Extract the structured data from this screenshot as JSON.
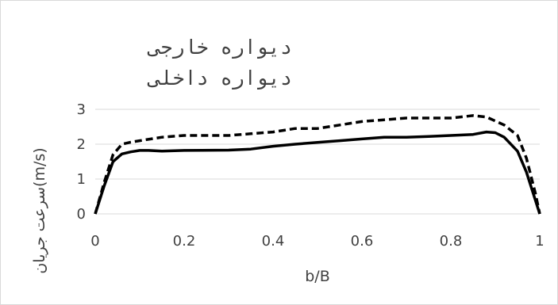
{
  "chart_data": {
    "type": "line",
    "title": "",
    "xlabel": "b/B",
    "ylabel": "سرعت جریان(m/s)",
    "xlim": [
      0,
      1
    ],
    "ylim": [
      0,
      3
    ],
    "x_ticks": [
      "0",
      "0.2",
      "0.4",
      "0.6",
      "0.8",
      "1"
    ],
    "y_ticks": [
      "0",
      "1",
      "2",
      "3"
    ],
    "grid": "horizontal",
    "legend_position": "top-left",
    "series": [
      {
        "name": "دیواره خارجی",
        "style": "dashed",
        "color": "#000000",
        "x": [
          0,
          0.02,
          0.04,
          0.06,
          0.08,
          0.1,
          0.15,
          0.2,
          0.3,
          0.35,
          0.4,
          0.45,
          0.5,
          0.55,
          0.6,
          0.65,
          0.7,
          0.75,
          0.8,
          0.85,
          0.88,
          0.92,
          0.95,
          0.97,
          0.99,
          1.0
        ],
        "values": [
          0,
          0.9,
          1.7,
          2.0,
          2.06,
          2.1,
          2.2,
          2.25,
          2.25,
          2.3,
          2.35,
          2.45,
          2.45,
          2.55,
          2.65,
          2.7,
          2.75,
          2.75,
          2.75,
          2.82,
          2.78,
          2.55,
          2.25,
          1.6,
          0.6,
          0
        ]
      },
      {
        "name": "دیواره داخلی",
        "style": "solid",
        "color": "#000000",
        "x": [
          0,
          0.02,
          0.04,
          0.06,
          0.08,
          0.1,
          0.12,
          0.15,
          0.2,
          0.3,
          0.35,
          0.4,
          0.45,
          0.5,
          0.55,
          0.6,
          0.65,
          0.7,
          0.75,
          0.8,
          0.85,
          0.88,
          0.9,
          0.92,
          0.95,
          0.97,
          0.99,
          1.0
        ],
        "values": [
          0,
          0.8,
          1.5,
          1.72,
          1.78,
          1.82,
          1.82,
          1.8,
          1.82,
          1.83,
          1.86,
          1.94,
          2.0,
          2.05,
          2.1,
          2.15,
          2.2,
          2.2,
          2.22,
          2.25,
          2.28,
          2.35,
          2.33,
          2.2,
          1.8,
          1.2,
          0.4,
          0
        ]
      }
    ]
  }
}
